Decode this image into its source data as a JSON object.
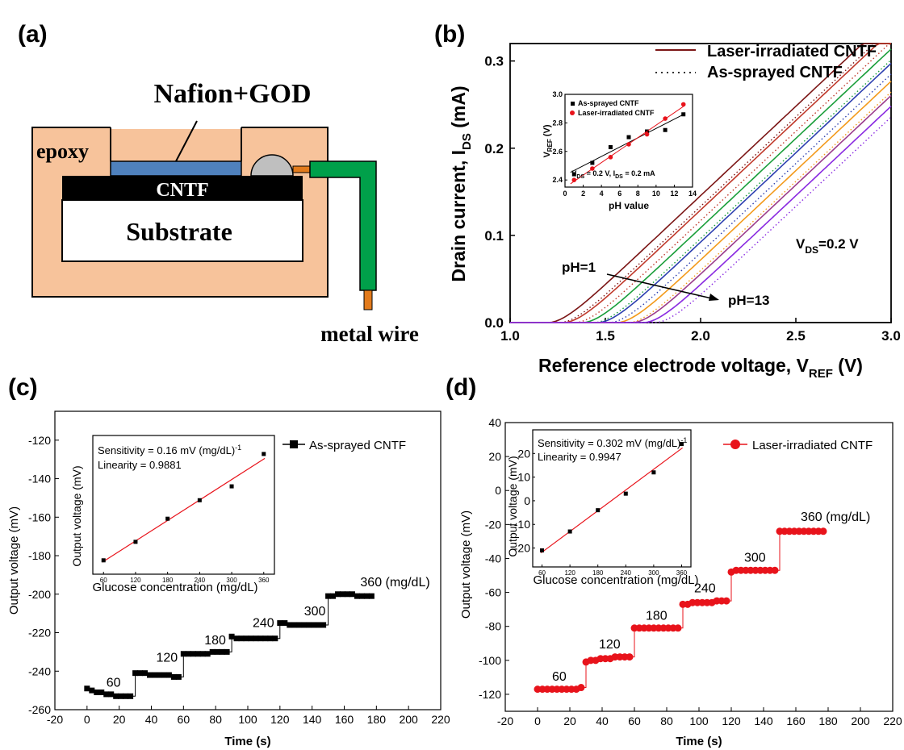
{
  "panels": {
    "a": {
      "label": "(a)"
    },
    "b": {
      "label": "(b)"
    },
    "c": {
      "label": "(c)"
    },
    "d": {
      "label": "(d)"
    }
  },
  "schematic": {
    "nafion_label": "Nafion+GOD",
    "epoxy_label": "epoxy",
    "cntf_label": "CNTF",
    "substrate_label": "Substrate",
    "wire_label": "metal wire",
    "colors": {
      "epoxy": "#f7c39b",
      "nafion": "#4f81bd",
      "drop": "#bfbfbf",
      "wire": "#00a04a",
      "pin": "#e37b1c"
    }
  },
  "chart_data": [
    {
      "id": "b",
      "type": "line",
      "xlabel": "Reference electrode voltage, V",
      "xlabel_sub": "REF",
      "xlabel_unit": " (V)",
      "ylabel": "Drain current, I",
      "ylabel_sub": "DS",
      "ylabel_unit": " (mA)",
      "xlim": [
        1.0,
        3.0
      ],
      "ylim": [
        0.0,
        0.32
      ],
      "xticks": [
        "1.0",
        "1.5",
        "2.0",
        "2.5",
        "3.0"
      ],
      "yticks": [
        "0.0",
        "0.1",
        "0.2",
        "0.3"
      ],
      "legend": [
        {
          "name": "Laser-irradiated CNTF",
          "style": "solid"
        },
        {
          "name": "As-sprayed CNTF",
          "style": "dotted"
        }
      ],
      "annotations": {
        "vds_main": "V",
        "vds_sub": "DS",
        "vds_rest": "=0.2 V",
        "ph_start": "pH=1",
        "ph_end": "pH=13"
      },
      "series_colors": [
        "#7b1515",
        "#c0392b",
        "#1a9e3a",
        "#2c3fb0",
        "#f39a1b",
        "#9b3c8c",
        "#8a2be2"
      ],
      "series_onsets": [
        1.2,
        1.28,
        1.38,
        1.46,
        1.56,
        1.64,
        1.7
      ],
      "inset": {
        "type": "scatter",
        "xlabel": "pH value",
        "ylabel": "V",
        "ylabel_sub": "REF",
        "ylabel_unit": " (V)",
        "xlim": [
          0,
          14
        ],
        "ylim": [
          2.35,
          3.0
        ],
        "xticks": [
          "0",
          "2",
          "4",
          "6",
          "8",
          "10",
          "12",
          "14"
        ],
        "yticks": [
          "2.4",
          "2.6",
          "2.8",
          "3.0"
        ],
        "note": "V",
        "note_sub1": "DS",
        "note_mid": " = 0.2 V, I",
        "note_sub2": "DS",
        "note_end": " = 0.2 mA",
        "series": [
          {
            "name": "As-sprayed CNTF",
            "color": "#000000",
            "marker": "square",
            "x": [
              1,
              3,
              5,
              7,
              9,
              11,
              13
            ],
            "y": [
              2.44,
              2.52,
              2.63,
              2.7,
              2.74,
              2.75,
              2.86
            ]
          },
          {
            "name": "Laser-irradiated CNTF",
            "color": "#e8131b",
            "marker": "circle",
            "x": [
              1,
              3,
              5,
              7,
              9,
              11,
              13
            ],
            "y": [
              2.4,
              2.48,
              2.56,
              2.65,
              2.72,
              2.83,
              2.93
            ]
          }
        ]
      }
    },
    {
      "id": "c",
      "type": "line",
      "xlabel": "Time (s)",
      "ylabel": "Output voltage (mV)",
      "xlim": [
        -20,
        220
      ],
      "ylim": [
        -260,
        -105
      ],
      "xticks": [
        "-20",
        "0",
        "20",
        "40",
        "60",
        "80",
        "100",
        "120",
        "140",
        "160",
        "180",
        "200",
        "220"
      ],
      "yticks": [
        "-260",
        "-240",
        "-220",
        "-200",
        "-180",
        "-160",
        "-140",
        "-120"
      ],
      "color": "#000000",
      "marker": "square",
      "legend": "As-sprayed CNTF",
      "steps": [
        {
          "start": 0,
          "values": [
            -249,
            -250,
            -251,
            -251,
            -252,
            -252,
            -253,
            -253,
            -253,
            -253
          ]
        },
        {
          "start": 30,
          "values": [
            -241,
            -241,
            -241,
            -242,
            -242,
            -242,
            -242,
            -242,
            -243,
            -243
          ]
        },
        {
          "start": 60,
          "values": [
            -231,
            -231,
            -231,
            -231,
            -231,
            -231,
            -230,
            -230,
            -230,
            -230
          ]
        },
        {
          "start": 90,
          "values": [
            -222,
            -223,
            -223,
            -223,
            -223,
            -223,
            -223,
            -223,
            -223,
            -223
          ]
        },
        {
          "start": 120,
          "values": [
            -215,
            -215,
            -216,
            -216,
            -216,
            -216,
            -216,
            -216,
            -216,
            -216
          ]
        },
        {
          "start": 150,
          "values": [
            -201,
            -201,
            -200,
            -200,
            -200,
            -200,
            -201,
            -201,
            -201,
            -201
          ]
        }
      ],
      "step_labels": [
        "60",
        "120",
        "180",
        "240",
        "300",
        "360 (mg/dL)"
      ],
      "step_label_pos": [
        [
          12,
          -248
        ],
        [
          43,
          -235
        ],
        [
          73,
          -226
        ],
        [
          103,
          -217
        ],
        [
          135,
          -211
        ],
        [
          170,
          -196
        ]
      ],
      "inset": {
        "type": "scatter",
        "xlabel": "Glucose concentration (mg/dL)",
        "ylabel": "Output voltage (mV)",
        "x": [
          60,
          120,
          180,
          240,
          300,
          360
        ],
        "y": [
          -182,
          -178,
          -173,
          -169,
          -166,
          -159
        ],
        "xlim": [
          40,
          380
        ],
        "ylim": [
          -185,
          -155
        ],
        "xticks": [
          "60",
          "120",
          "180",
          "240",
          "300",
          "360"
        ],
        "sensitivity_text": "Sensitivity = 0.16 mV (mg/dL)",
        "sensitivity_exp": "-1",
        "linearity_text": "Linearity = 0.9881"
      }
    },
    {
      "id": "d",
      "type": "line",
      "xlabel": "Time (s)",
      "ylabel": "Output voltage (mV)",
      "xlim": [
        -20,
        220
      ],
      "ylim": [
        -130,
        40
      ],
      "xticks": [
        "-20",
        "0",
        "20",
        "40",
        "60",
        "80",
        "100",
        "120",
        "140",
        "160",
        "180",
        "200",
        "220"
      ],
      "yticks": [
        "-120",
        "-100",
        "-80",
        "-60",
        "-40",
        "-20",
        "0",
        "20",
        "40"
      ],
      "color": "#e8131b",
      "marker": "circle",
      "legend": "Laser-irradiated CNTF",
      "steps": [
        {
          "start": 0,
          "values": [
            -117,
            -117,
            -117,
            -117,
            -117,
            -117,
            -117,
            -117,
            -117,
            -116
          ]
        },
        {
          "start": 30,
          "values": [
            -101,
            -100,
            -100,
            -99,
            -99,
            -99,
            -98,
            -98,
            -98,
            -98
          ]
        },
        {
          "start": 60,
          "values": [
            -81,
            -81,
            -81,
            -81,
            -81,
            -81,
            -81,
            -81,
            -81,
            -81
          ]
        },
        {
          "start": 90,
          "values": [
            -67,
            -67,
            -66,
            -66,
            -66,
            -66,
            -66,
            -65,
            -65,
            -65
          ]
        },
        {
          "start": 120,
          "values": [
            -48,
            -47,
            -47,
            -47,
            -47,
            -47,
            -47,
            -47,
            -47,
            -47
          ]
        },
        {
          "start": 150,
          "values": [
            -24,
            -24,
            -24,
            -24,
            -24,
            -24,
            -24,
            -24,
            -24,
            -24
          ]
        }
      ],
      "step_labels": [
        "60",
        "120",
        "180",
        "240",
        "300",
        "360 (mg/dL)"
      ],
      "step_label_pos": [
        [
          9,
          -112
        ],
        [
          38,
          -93
        ],
        [
          67,
          -76
        ],
        [
          97,
          -60
        ],
        [
          128,
          -42
        ],
        [
          163,
          -18
        ]
      ],
      "inset": {
        "type": "scatter",
        "xlabel": "Glucose concentration (mg/dL)",
        "ylabel": "Output voltage (mV)",
        "x": [
          60,
          120,
          180,
          240,
          300,
          360
        ],
        "y": [
          -21,
          -13,
          -4,
          3,
          12,
          24
        ],
        "xlim": [
          40,
          380
        ],
        "ylim": [
          -28,
          30
        ],
        "xticks": [
          "60",
          "120",
          "180",
          "240",
          "300",
          "360"
        ],
        "yticks": [
          "-20",
          "-10",
          "0",
          "10",
          "20"
        ],
        "sensitivity_text": "Sensitivity = 0.302 mV (mg/dL)",
        "sensitivity_exp": "-1",
        "linearity_text": "Linearity = 0.9947"
      }
    }
  ]
}
